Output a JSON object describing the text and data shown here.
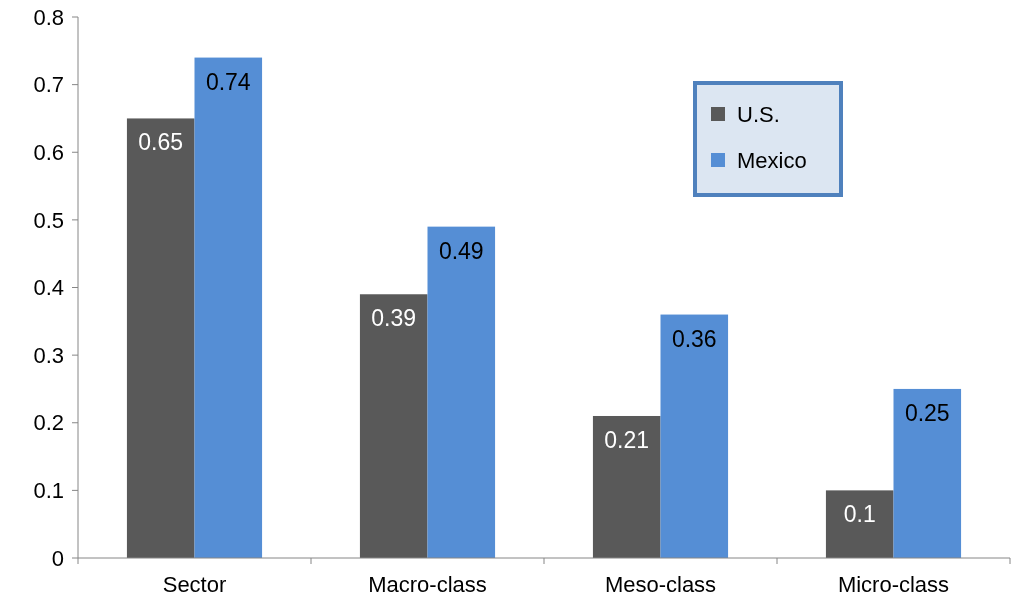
{
  "chart_data": {
    "type": "bar",
    "categories": [
      "Sector",
      "Macro-class",
      "Meso-class",
      "Micro-class"
    ],
    "series": [
      {
        "name": "U.S.",
        "color": "#595959",
        "values": [
          0.65,
          0.39,
          0.21,
          0.1
        ]
      },
      {
        "name": "Mexico",
        "color": "#558ed5",
        "values": [
          0.74,
          0.49,
          0.36,
          0.25
        ]
      }
    ],
    "ylim": [
      0,
      0.8
    ],
    "yticks": [
      {
        "value": 0,
        "label": "0"
      },
      0.1,
      0.2,
      0.3,
      0.4,
      0.5,
      0.6,
      0.7,
      0.8
    ],
    "grid": false,
    "legend": "top right",
    "data_labels": true
  }
}
